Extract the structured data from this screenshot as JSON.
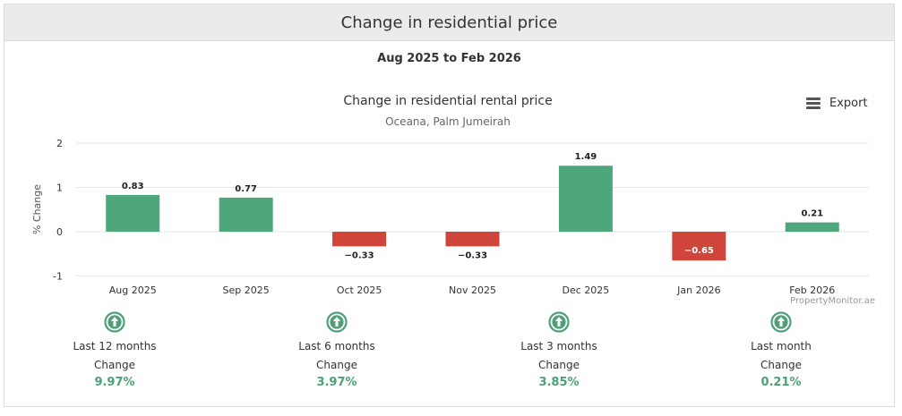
{
  "header": {
    "title": "Change in residential price"
  },
  "date_range": "Aug 2025 to Feb 2026",
  "export_label": "Export",
  "credit": "PropertyMonitor.ae",
  "colors": {
    "positive": "#4ea67c",
    "negative": "#d0453a",
    "summary_value": "#4c9f77"
  },
  "chart_data": {
    "type": "bar",
    "title": "Change in residential rental price",
    "subtitle": "Oceana, Palm Jumeirah",
    "ylabel": "% Change",
    "xlabel": "",
    "ylim": [
      -1,
      2
    ],
    "yticks": [
      2,
      1,
      0,
      -1
    ],
    "categories": [
      "Aug 2025",
      "Sep 2025",
      "Oct 2025",
      "Nov 2025",
      "Dec 2025",
      "Jan 2026",
      "Feb 2026"
    ],
    "values": [
      0.83,
      0.77,
      -0.33,
      -0.33,
      1.49,
      -0.65,
      0.21
    ],
    "value_labels": [
      "0.83",
      "0.77",
      "−0.33",
      "−0.33",
      "1.49",
      "−0.65",
      "0.21"
    ]
  },
  "summary": [
    {
      "period": "Last 12 months",
      "label": "Change",
      "value": "9.97%",
      "icon": "up-arrow-circle-icon"
    },
    {
      "period": "Last 6 months",
      "label": "Change",
      "value": "3.97%",
      "icon": "up-arrow-circle-icon"
    },
    {
      "period": "Last 3 months",
      "label": "Change",
      "value": "3.85%",
      "icon": "up-arrow-circle-icon"
    },
    {
      "period": "Last month",
      "label": "Change",
      "value": "0.21%",
      "icon": "up-arrow-circle-icon"
    }
  ]
}
